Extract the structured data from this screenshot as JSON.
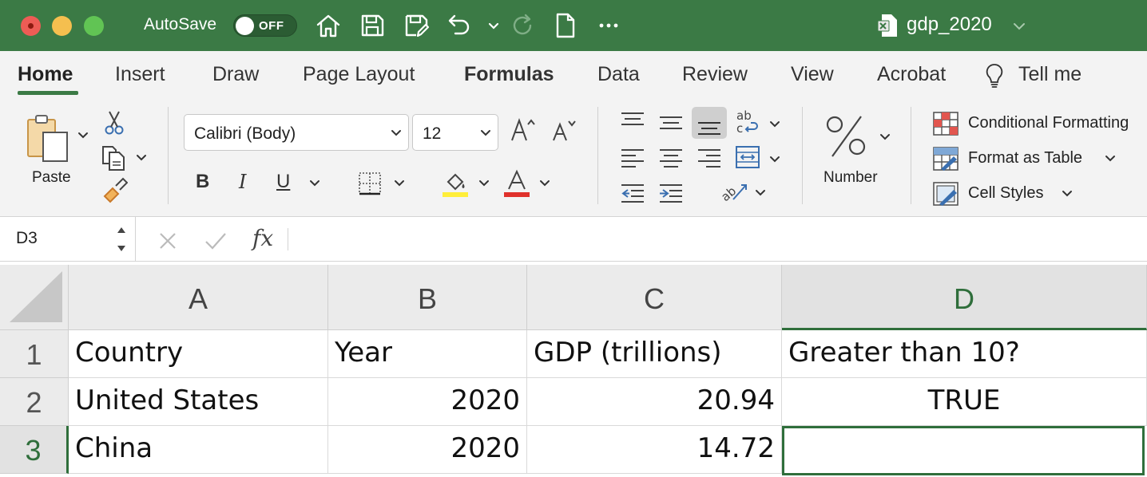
{
  "titlebar": {
    "autosave_label": "AutoSave",
    "autosave_state": "OFF",
    "document_title": "gdp_2020",
    "icons": [
      "home-icon",
      "save-icon",
      "save-as-icon",
      "undo-icon",
      "redo-icon",
      "new-document-icon",
      "more-icon"
    ]
  },
  "tabs": [
    "Home",
    "Insert",
    "Draw",
    "Page Layout",
    "Formulas",
    "Data",
    "Review",
    "View",
    "Acrobat",
    "Tell me"
  ],
  "ribbon": {
    "paste_label": "Paste",
    "font_name": "Calibri (Body)",
    "font_size": "12",
    "bold": "B",
    "italic": "I",
    "underline": "U",
    "number_label": "Number",
    "conditional_formatting": "Conditional Formatting",
    "format_as_table": "Format as Table",
    "cell_styles": "Cell Styles"
  },
  "formula_bar": {
    "name_box": "D3",
    "fx": "fx",
    "content": ""
  },
  "sheet": {
    "columns": [
      "A",
      "B",
      "C",
      "D"
    ],
    "rows": [
      {
        "num": "1",
        "cells": [
          "Country",
          "Year",
          "GDP (trillions)",
          "Greater than 10?"
        ]
      },
      {
        "num": "2",
        "cells": [
          "United States",
          "2020",
          "20.94",
          "TRUE"
        ]
      },
      {
        "num": "3",
        "cells": [
          "China",
          "2020",
          "14.72",
          ""
        ]
      }
    ],
    "active_cell": "D3"
  },
  "colors": {
    "accent": "#3b7a45",
    "selection": "#2f6e3b"
  }
}
